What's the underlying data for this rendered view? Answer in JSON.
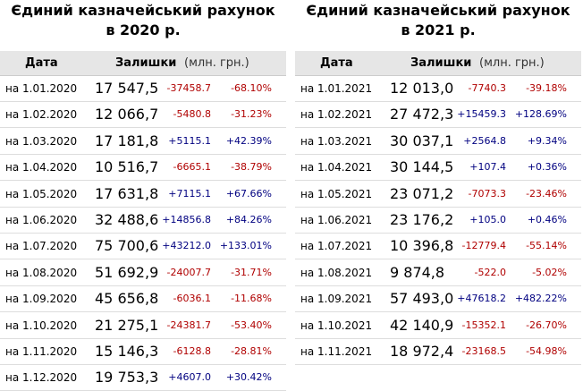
{
  "tables": [
    {
      "title": [
        "Єдиний казначейський рахунок",
        "в 2020 р."
      ],
      "header": {
        "date": "Дата",
        "balance": "Залишки",
        "unit": "(млн. грн.)"
      },
      "rows": [
        [
          "на 1.01.2020",
          "17 547,5",
          "-37458.7",
          "-68.10%"
        ],
        [
          "на 1.02.2020",
          "12 066,7",
          "-5480.8",
          "-31.23%"
        ],
        [
          "на 1.03.2020",
          "17 181,8",
          "+5115.1",
          "+42.39%"
        ],
        [
          "на 1.04.2020",
          "10 516,7",
          "-6665.1",
          "-38.79%"
        ],
        [
          "на 1.05.2020",
          "17 631,8",
          "+7115.1",
          "+67.66%"
        ],
        [
          "на 1.06.2020",
          "32 488,6",
          "+14856.8",
          "+84.26%"
        ],
        [
          "на 1.07.2020",
          "75 700,6",
          "+43212.0",
          "+133.01%"
        ],
        [
          "на 1.08.2020",
          "51 692,9",
          "-24007.7",
          "-31.71%"
        ],
        [
          "на 1.09.2020",
          "45 656,8",
          "-6036.1",
          "-11.68%"
        ],
        [
          "на 1.10.2020",
          "21 275,1",
          "-24381.7",
          "-53.40%"
        ],
        [
          "на 1.11.2020",
          "15 146,3",
          "-6128.8",
          "-28.81%"
        ],
        [
          "на 1.12.2020",
          "19 753,3",
          "+4607.0",
          "+30.42%"
        ]
      ]
    },
    {
      "title": [
        "Єдиний казначейський рахунок",
        "в 2021 р."
      ],
      "header": {
        "date": "Дата",
        "balance": "Залишки",
        "unit": "(млн. грн.)"
      },
      "rows": [
        [
          "на 1.01.2021",
          "12 013,0",
          "-7740.3",
          "-39.18%"
        ],
        [
          "на 1.02.2021",
          "27 472,3",
          "+15459.3",
          "+128.69%"
        ],
        [
          "на 1.03.2021",
          "30 037,1",
          "+2564.8",
          "+9.34%"
        ],
        [
          "на 1.04.2021",
          "30 144,5",
          "+107.4",
          "+0.36%"
        ],
        [
          "на 1.05.2021",
          "23 071,2",
          "-7073.3",
          "-23.46%"
        ],
        [
          "на 1.06.2021",
          "23 176,2",
          "+105.0",
          "+0.46%"
        ],
        [
          "на 1.07.2021",
          "10 396,8",
          "-12779.4",
          "-55.14%"
        ],
        [
          "на 1.08.2021",
          "9 874,8",
          "-522.0",
          "-5.02%"
        ],
        [
          "на 1.09.2021",
          "57 493,0",
          "+47618.2",
          "+482.22%"
        ],
        [
          "на 1.10.2021",
          "42 140,9",
          "-15352.1",
          "-26.70%"
        ],
        [
          "на 1.11.2021",
          "18 972,4",
          "-23168.5",
          "-54.98%"
        ]
      ]
    }
  ]
}
